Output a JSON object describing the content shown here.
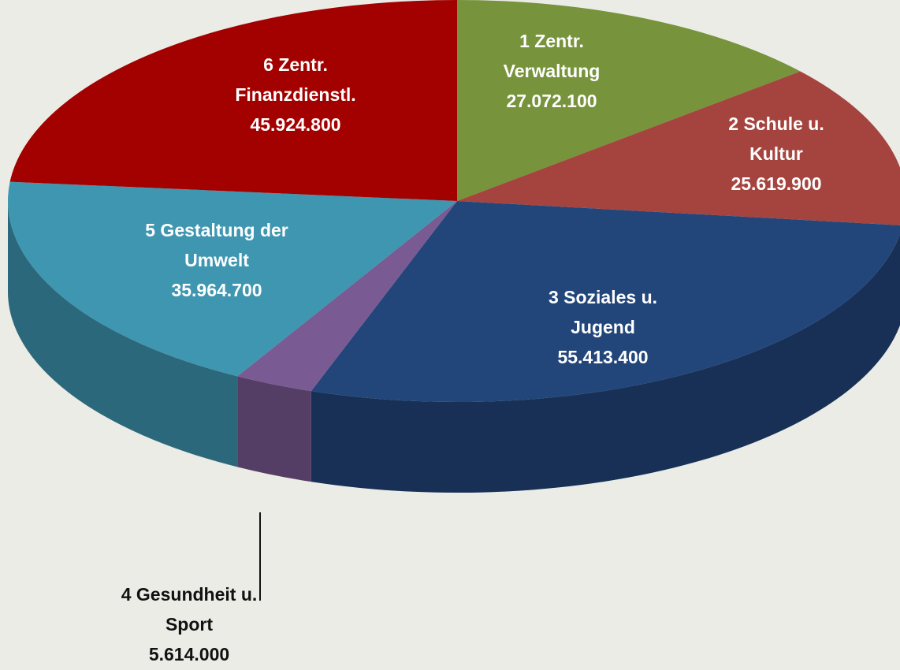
{
  "chart_data": {
    "type": "pie",
    "categories": [
      "1 Zentr. Verwaltung",
      "2 Schule u. Kultur",
      "3 Soziales u. Jugend",
      "4 Gesundheit u. Sport",
      "5 Gestaltung der Umwelt",
      "6 Zentr. Finanzdienstl."
    ],
    "values": [
      27072100,
      25619900,
      55413400,
      5614000,
      35964700,
      45924800
    ],
    "value_labels": [
      "27.072.100",
      "25.619.900",
      "55.413.400",
      "5.614.000",
      "35.964.700",
      "45.924.800"
    ],
    "colors": [
      "#77933c",
      "#a5443f",
      "#23467a",
      "#7a5a93",
      "#3f96b0",
      "#a30000"
    ]
  }
}
